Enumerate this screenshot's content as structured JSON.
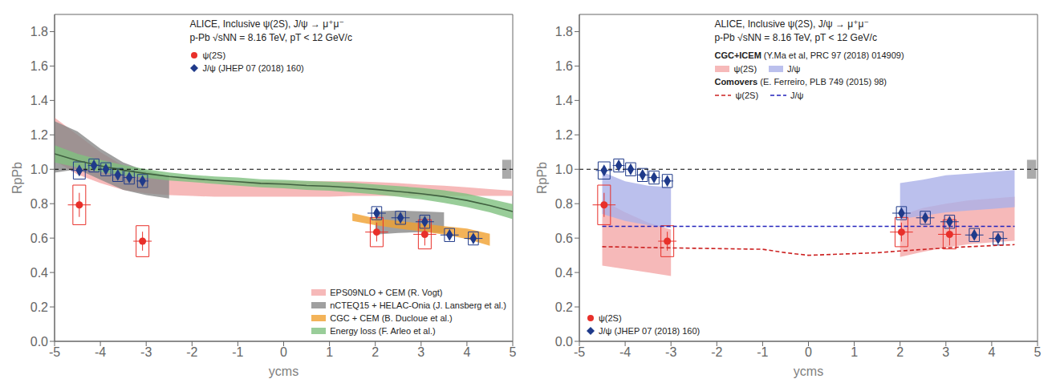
{
  "chart_data": [
    {
      "type": "line",
      "annotations": [
        "ALICE, Inclusive ψ(2S), J/ψ → μ⁺μ⁻",
        "p-Pb √sNN = 8.16 TeV, pT < 12 GeV/c"
      ],
      "x_label": "ycms",
      "y_label": "RpPb",
      "xlim": [
        -5,
        5
      ],
      "xticks": [
        -5,
        -4,
        -3,
        -2,
        -1,
        0,
        1,
        2,
        3,
        4,
        5
      ],
      "ylim": [
        0,
        1.9
      ],
      "yticks": [
        {
          "value": 0,
          "label": "0.0"
        },
        0.2,
        0.4,
        0.6,
        0.8,
        {
          "value": 1.0,
          "label": "1.0"
        },
        1.2,
        1.4,
        1.6,
        1.8
      ],
      "grid": false,
      "legend": "lower right",
      "reference_line": {
        "y": 1.0,
        "color": "#000000",
        "line_style": "dashed"
      },
      "box": {
        "x": 4.77,
        "y": 0.945,
        "width": 0.2,
        "height": 0.11,
        "color": "#aaaaaa"
      },
      "series": [
        {
          "name": "EPS09NLO + CEM (R. Vogt)",
          "type": "band",
          "color": "#f4a8a8",
          "segments": [
            {
              "x": [
                -5.0,
                -4.5,
                -4.0,
                -3.5,
                -3.0,
                -2.5,
                -2.0,
                -1.5,
                -1.0,
                -0.5,
                0.0,
                0.5,
                1.0,
                1.5,
                2.0,
                2.5,
                3.0,
                3.5,
                4.0,
                4.5,
                5.0
              ],
              "low": [
                1.05,
                0.97,
                0.92,
                0.88,
                0.86,
                0.85,
                0.845,
                0.84,
                0.84,
                0.84,
                0.84,
                0.84,
                0.84,
                0.845,
                0.845,
                0.845,
                0.845,
                0.845,
                0.845,
                0.845,
                0.845
              ],
              "high": [
                1.3,
                1.2,
                1.1,
                1.02,
                0.97,
                0.955,
                0.945,
                0.935,
                0.93,
                0.93,
                0.93,
                0.93,
                0.93,
                0.93,
                0.925,
                0.92,
                0.91,
                0.905,
                0.895,
                0.885,
                0.875
              ]
            }
          ]
        },
        {
          "name": "nCTEQ15 + HELAC-Onia (J. Lansberg et al.)",
          "type": "band",
          "color": "#888888",
          "segments": [
            {
              "x": [
                -5.0,
                -4.5,
                -4.0,
                -3.5,
                -3.0,
                -2.5
              ],
              "low": [
                0.98,
                1.0,
                0.94,
                0.88,
                0.85,
                0.83
              ],
              "high": [
                1.28,
                1.22,
                1.12,
                1.04,
                0.99,
                0.96
              ]
            },
            {
              "x": [
                2.0,
                2.5,
                3.0,
                3.5
              ],
              "low": [
                0.62,
                0.63,
                0.635,
                0.63
              ],
              "high": [
                0.755,
                0.76,
                0.755,
                0.75
              ]
            }
          ]
        },
        {
          "name": "CGC + CEM (B. Ducloue et al.)",
          "type": "band",
          "color": "#f0a030",
          "segments": [
            {
              "x": [
                1.5,
                2.0,
                2.5,
                3.0,
                3.5,
                4.0,
                4.5
              ],
              "low": [
                0.7,
                0.675,
                0.655,
                0.64,
                0.62,
                0.595,
                0.555
              ],
              "high": [
                0.745,
                0.715,
                0.7,
                0.685,
                0.67,
                0.655,
                0.625
              ]
            }
          ]
        },
        {
          "name": "Energy loss (F. Arleo et al.)",
          "type": "band",
          "color": "#80c080",
          "segments": [
            {
              "x": [
                -5.0,
                -4.5,
                -4.0,
                -3.5,
                -3.0,
                -2.5,
                -2.0,
                -1.5,
                -1.0,
                -0.5,
                0.0,
                0.5,
                1.0,
                1.5,
                2.0,
                2.5,
                3.0,
                3.5,
                4.0,
                4.5,
                5.0
              ],
              "low": [
                1.04,
                1.01,
                0.985,
                0.965,
                0.95,
                0.935,
                0.925,
                0.915,
                0.905,
                0.895,
                0.89,
                0.88,
                0.875,
                0.865,
                0.855,
                0.84,
                0.825,
                0.805,
                0.78,
                0.75,
                0.71
              ],
              "high": [
                1.14,
                1.09,
                1.055,
                1.025,
                1.0,
                0.982,
                0.968,
                0.958,
                0.952,
                0.942,
                0.938,
                0.932,
                0.928,
                0.922,
                0.912,
                0.902,
                0.892,
                0.878,
                0.858,
                0.828,
                0.798
              ]
            }
          ]
        },
        {
          "type": "line",
          "color": "#406040",
          "line_style": "solid",
          "x": [
            -5.0,
            -4.5,
            -4.0,
            -3.5,
            -3.0,
            -2.5,
            -2.0,
            -1.5,
            -1.0,
            -0.5,
            0.0,
            0.5,
            1.0,
            1.5,
            2.0,
            2.5,
            3.0,
            3.5,
            4.0,
            4.5,
            5.0
          ],
          "values": [
            1.09,
            1.05,
            1.02,
            0.995,
            0.975,
            0.958,
            0.946,
            0.936,
            0.928,
            0.918,
            0.914,
            0.906,
            0.901,
            0.893,
            0.883,
            0.871,
            0.858,
            0.841,
            0.819,
            0.789,
            0.754
          ]
        },
        {
          "name": "ψ(2S)",
          "type": "scatter",
          "color": "#e8302a",
          "marker": "circle",
          "x": [
            -4.46,
            -3.08,
            2.03,
            3.08
          ],
          "values": [
            0.793,
            0.582,
            0.635,
            0.622
          ],
          "yerr": [
            0.07,
            0.055,
            0.055,
            0.065
          ],
          "xerr": [
            0.25,
            0.2,
            0.25,
            0.25
          ],
          "syst_low": [
            0.115,
            0.09,
            0.085,
            0.085
          ],
          "syst_high": [
            0.115,
            0.09,
            0.085,
            0.085
          ],
          "syst_xerr": [
            0.14,
            0.14,
            0.14,
            0.14
          ]
        },
        {
          "name": "J/ψ (JHEP 07 (2018) 160)",
          "type": "scatter",
          "color": "#1f3a8a",
          "marker": "diamond",
          "x": [
            -4.46,
            -4.14,
            -3.88,
            -3.62,
            -3.37,
            -3.08,
            2.03,
            2.55,
            3.08,
            3.62,
            4.14
          ],
          "values": [
            0.993,
            1.022,
            1.0,
            0.967,
            0.952,
            0.932,
            0.745,
            0.718,
            0.695,
            0.618,
            0.598
          ],
          "yerr": [
            0.025,
            0.015,
            0.013,
            0.013,
            0.013,
            0.018,
            0.022,
            0.018,
            0.018,
            0.022,
            0.022
          ],
          "xerr": [
            0.18,
            0.13,
            0.13,
            0.13,
            0.13,
            0.13,
            0.2,
            0.2,
            0.2,
            0.2,
            0.2
          ],
          "syst_low": [
            0.05,
            0.038,
            0.038,
            0.038,
            0.038,
            0.038,
            0.038,
            0.038,
            0.038,
            0.038,
            0.038
          ],
          "syst_high": [
            0.05,
            0.038,
            0.038,
            0.038,
            0.038,
            0.038,
            0.038,
            0.038,
            0.038,
            0.038,
            0.038
          ],
          "syst_xerr": [
            0.13,
            0.11,
            0.11,
            0.11,
            0.11,
            0.11,
            0.11,
            0.11,
            0.11,
            0.11,
            0.11
          ]
        }
      ]
    },
    {
      "type": "line",
      "annotations": [
        "ALICE, Inclusive ψ(2S), J/ψ → μ⁺μ⁻",
        "p-Pb √sNN = 8.16 TeV, pT < 12 GeV/c",
        "CGC+ICEM (Y.Ma et al, PRC 97 (2018) 014909)",
        "Comovers (E. Ferreiro, PLB 749 (2015) 98)"
      ],
      "x_label": "ycms",
      "y_label": "RpPb",
      "xlim": [
        -5,
        5
      ],
      "xticks": [
        -5,
        -4,
        -3,
        -2,
        -1,
        0,
        1,
        2,
        3,
        4,
        5
      ],
      "ylim": [
        0,
        1.9
      ],
      "yticks": [
        {
          "value": 0,
          "label": "0.0"
        },
        0.2,
        0.4,
        0.6,
        0.8,
        {
          "value": 1.0,
          "label": "1.0"
        },
        1.2,
        1.4,
        1.6,
        1.8
      ],
      "grid": false,
      "legend": "lower left",
      "reference_line": {
        "y": 1.0,
        "color": "#000000",
        "line_style": "dashed"
      },
      "box": {
        "x": 4.77,
        "y": 0.945,
        "width": 0.2,
        "height": 0.11,
        "color": "#aaaaaa"
      },
      "series": [
        {
          "name": "ψ(2S)",
          "type": "band",
          "color": "#f4a8a8",
          "segments": [
            {
              "x": [
                -4.5,
                -4.0,
                -3.5,
                -3.0
              ],
              "low": [
                0.44,
                0.42,
                0.4,
                0.38
              ],
              "high": [
                0.82,
                0.75,
                0.69,
                0.65
              ]
            },
            {
              "x": [
                2.0,
                2.5,
                3.0,
                3.5,
                4.0,
                4.5
              ],
              "low": [
                0.49,
                0.52,
                0.545,
                0.565,
                0.575,
                0.585
              ],
              "high": [
                0.73,
                0.775,
                0.8,
                0.82,
                0.83,
                0.84
              ]
            }
          ]
        },
        {
          "name": "J/ψ",
          "type": "band",
          "color": "#aab0e8",
          "segments": [
            {
              "x": [
                -4.5,
                -4.0,
                -3.5,
                -3.0
              ],
              "low": [
                0.74,
                0.7,
                0.675,
                0.66
              ],
              "high": [
                0.985,
                0.93,
                0.905,
                0.895
              ]
            },
            {
              "x": [
                2.0,
                2.5,
                3.0,
                3.5,
                4.0,
                4.5
              ],
              "low": [
                0.71,
                0.73,
                0.75,
                0.76,
                0.77,
                0.78
              ],
              "high": [
                0.92,
                0.94,
                0.965,
                0.975,
                0.985,
                0.995
              ]
            }
          ]
        },
        {
          "name": "ψ(2S)",
          "type": "line",
          "color": "#cc2222",
          "line_style": "dashed",
          "x": [
            -4.5,
            -4.0,
            -3.5,
            -3.0,
            -2.5,
            -2.0,
            -1.5,
            -1.0,
            -0.5,
            0.0,
            0.5,
            1.0,
            1.5,
            2.0,
            2.5,
            3.0,
            3.5,
            4.0,
            4.5
          ],
          "values": [
            0.55,
            0.548,
            0.545,
            0.543,
            0.541,
            0.539,
            0.537,
            0.535,
            0.515,
            0.5,
            0.505,
            0.51,
            0.515,
            0.525,
            0.534,
            0.543,
            0.55,
            0.556,
            0.562
          ]
        },
        {
          "name": "J/ψ",
          "type": "line",
          "color": "#2222bb",
          "line_style": "dashed",
          "x": [
            -4.5,
            -4.0,
            -3.5,
            -3.0,
            -2.5,
            -2.0,
            -1.5,
            -1.0,
            -0.5,
            0.0,
            0.5,
            1.0,
            1.5,
            2.0,
            2.5,
            3.0,
            3.5,
            4.0,
            4.5
          ],
          "values": [
            0.668,
            0.668,
            0.668,
            0.668,
            0.668,
            0.668,
            0.668,
            0.668,
            0.668,
            0.668,
            0.668,
            0.668,
            0.668,
            0.668,
            0.668,
            0.668,
            0.668,
            0.668,
            0.668
          ]
        },
        {
          "name": "ψ(2S)",
          "type": "scatter",
          "color": "#e8302a",
          "marker": "circle",
          "x": [
            -4.46,
            -3.08,
            2.03,
            3.08
          ],
          "values": [
            0.793,
            0.582,
            0.635,
            0.622
          ],
          "yerr": [
            0.07,
            0.055,
            0.055,
            0.065
          ],
          "xerr": [
            0.25,
            0.2,
            0.25,
            0.25
          ],
          "syst_low": [
            0.115,
            0.09,
            0.085,
            0.085
          ],
          "syst_high": [
            0.115,
            0.09,
            0.085,
            0.085
          ],
          "syst_xerr": [
            0.14,
            0.14,
            0.14,
            0.14
          ]
        },
        {
          "name": "J/ψ (JHEP 07 (2018) 160)",
          "type": "scatter",
          "color": "#1f3a8a",
          "marker": "diamond",
          "x": [
            -4.46,
            -4.14,
            -3.88,
            -3.62,
            -3.37,
            -3.08,
            2.03,
            2.55,
            3.08,
            3.62,
            4.14
          ],
          "values": [
            0.993,
            1.022,
            1.0,
            0.967,
            0.952,
            0.932,
            0.745,
            0.718,
            0.695,
            0.618,
            0.598
          ],
          "yerr": [
            0.025,
            0.015,
            0.013,
            0.013,
            0.013,
            0.018,
            0.022,
            0.018,
            0.018,
            0.022,
            0.022
          ],
          "xerr": [
            0.18,
            0.13,
            0.13,
            0.13,
            0.13,
            0.13,
            0.2,
            0.2,
            0.2,
            0.2,
            0.2
          ],
          "syst_low": [
            0.05,
            0.038,
            0.038,
            0.038,
            0.038,
            0.038,
            0.038,
            0.038,
            0.038,
            0.038,
            0.038
          ],
          "syst_high": [
            0.05,
            0.038,
            0.038,
            0.038,
            0.038,
            0.038,
            0.038,
            0.038,
            0.038,
            0.038,
            0.038
          ],
          "syst_xerr": [
            0.13,
            0.11,
            0.11,
            0.11,
            0.11,
            0.11,
            0.11,
            0.11,
            0.11,
            0.11,
            0.11
          ]
        }
      ]
    }
  ]
}
